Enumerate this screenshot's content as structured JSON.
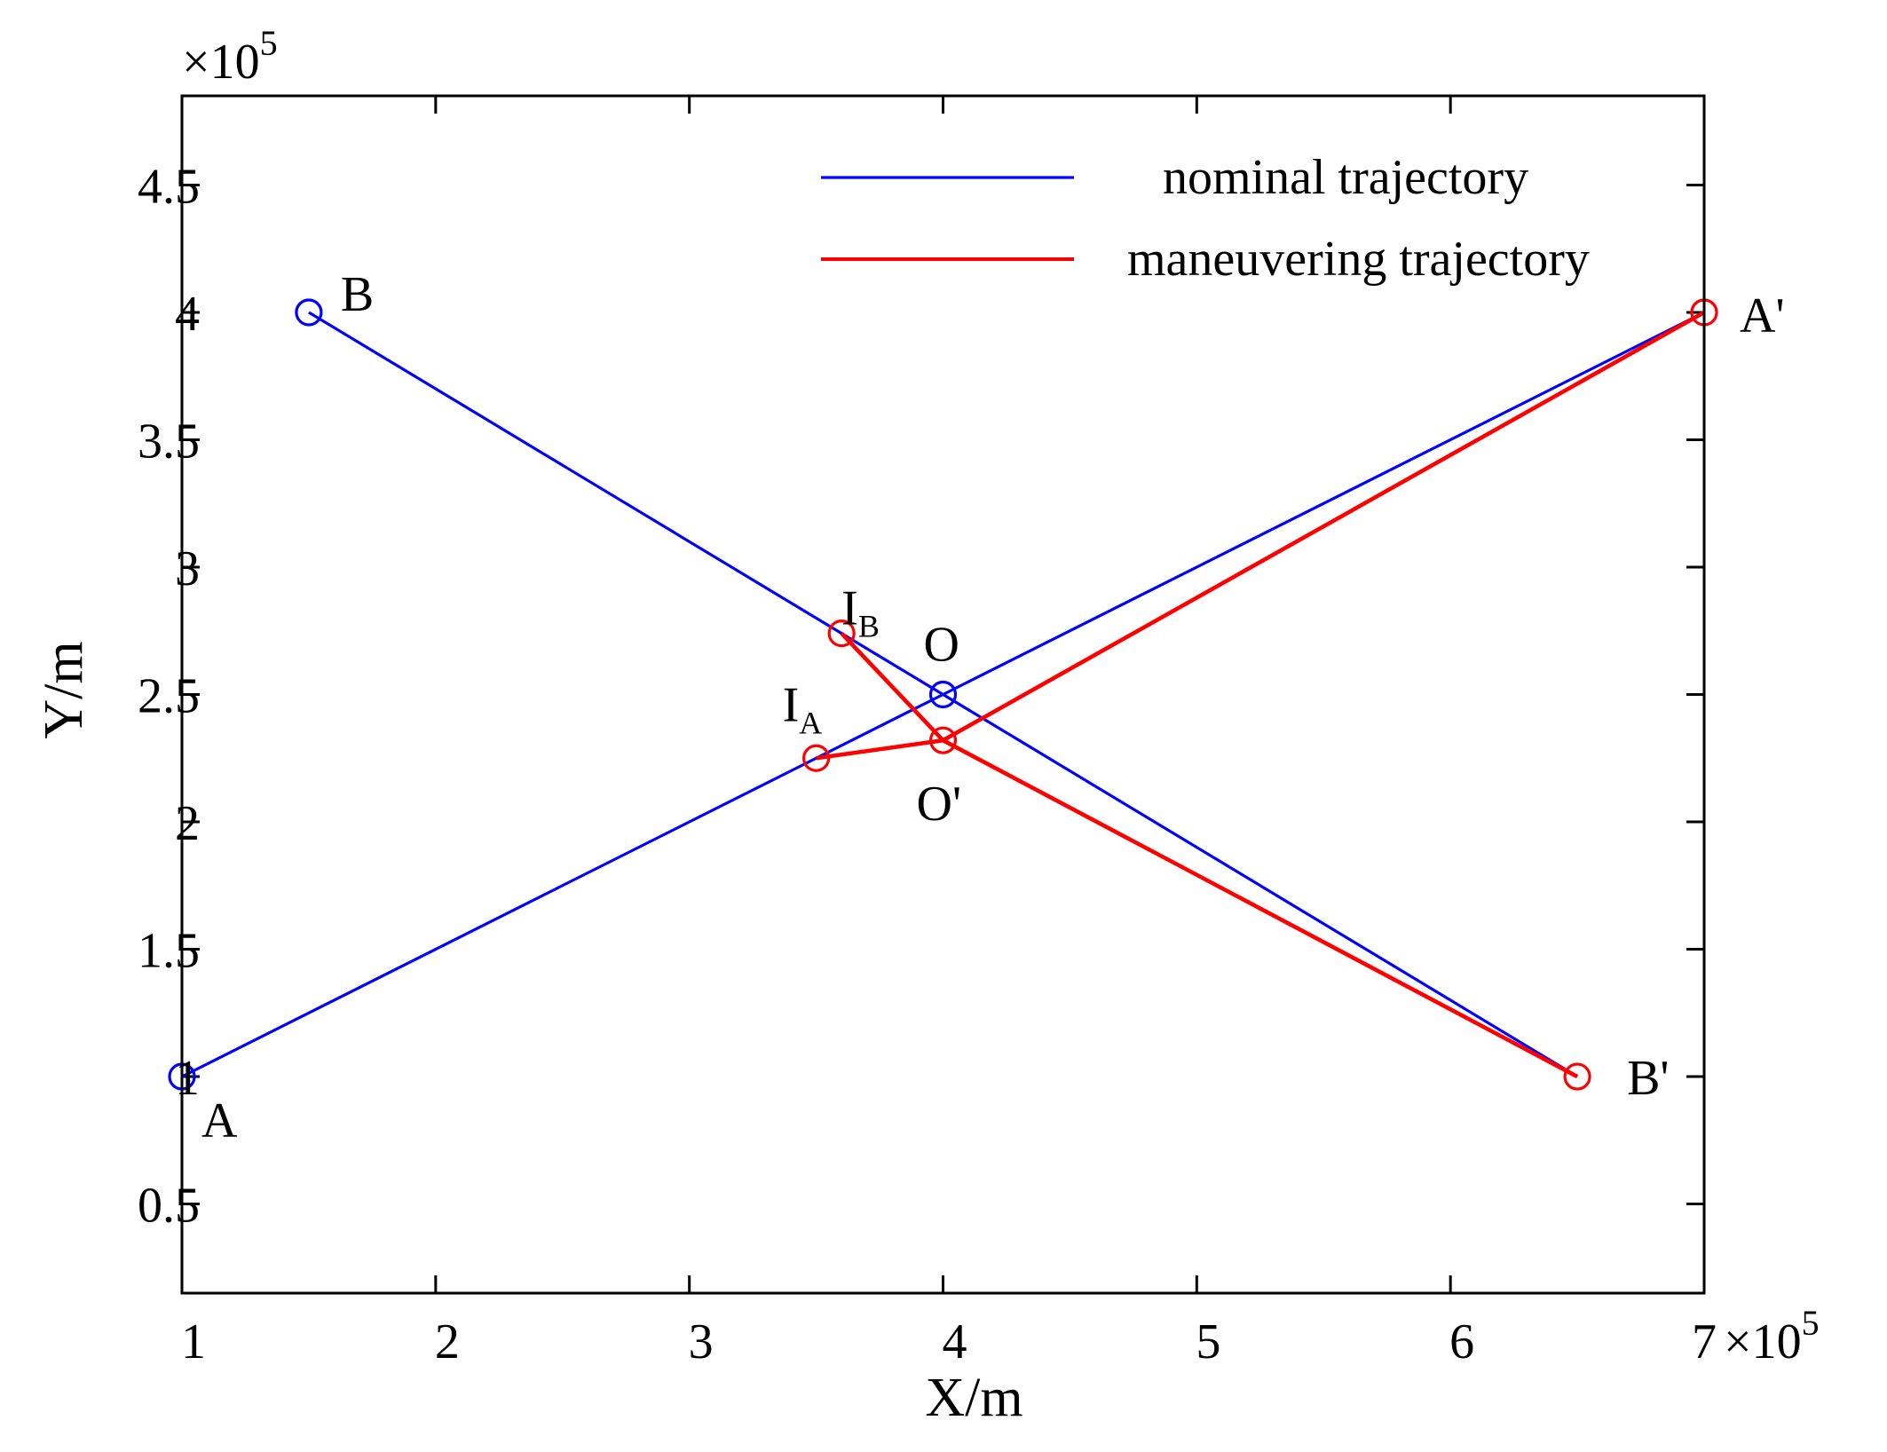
{
  "chart_data": {
    "type": "line",
    "xlabel": "X/m",
    "ylabel": "Y/m",
    "x_exponent": "×10",
    "x_exponent_power": "5",
    "y_exponent": "×10",
    "y_exponent_power": "5",
    "xlim": [
      1,
      7
    ],
    "ylim": [
      0.15,
      4.85
    ],
    "xticks": [
      1,
      2,
      3,
      4,
      5,
      6,
      7
    ],
    "xtick_labels": [
      "1",
      "2",
      "3",
      "4",
      "5",
      "6",
      "7"
    ],
    "yticks": [
      0.5,
      1,
      1.5,
      2,
      2.5,
      3,
      3.5,
      4,
      4.5
    ],
    "ytick_labels": [
      "0.5",
      "1",
      "1.5",
      "2",
      "2.5",
      "3",
      "3.5",
      "4",
      "4.5"
    ],
    "grid": false,
    "legend_position": "top-right",
    "series": [
      {
        "name": "nominal  trajectory",
        "color": "#0000ff",
        "lines": [
          {
            "x": [
              1,
              4,
              7
            ],
            "y": [
              1,
              2.5,
              4
            ]
          },
          {
            "x": [
              1.5,
              4,
              6.5
            ],
            "y": [
              4,
              2.5,
              1
            ]
          }
        ],
        "markers": [
          {
            "x": 1,
            "y": 1
          },
          {
            "x": 1.5,
            "y": 4
          },
          {
            "x": 4,
            "y": 2.5
          }
        ]
      },
      {
        "name": "maneuvering trajectory",
        "color": "#ff0000",
        "lines": [
          {
            "x": [
              3.5,
              4,
              7
            ],
            "y": [
              2.25,
              2.32,
              4
            ]
          },
          {
            "x": [
              3.6,
              4,
              6.5
            ],
            "y": [
              2.74,
              2.32,
              1
            ]
          }
        ],
        "markers": [
          {
            "x": 3.5,
            "y": 2.25
          },
          {
            "x": 3.6,
            "y": 2.74
          },
          {
            "x": 4,
            "y": 2.32
          },
          {
            "x": 7,
            "y": 4
          },
          {
            "x": 6.5,
            "y": 1
          }
        ]
      }
    ],
    "annotations": [
      {
        "id": "A",
        "text": "A",
        "sub": "",
        "x": 1,
        "y": 1
      },
      {
        "id": "B",
        "text": "B",
        "sub": "",
        "x": 1.5,
        "y": 4
      },
      {
        "id": "O",
        "text": "O",
        "sub": "",
        "x": 4,
        "y": 2.5
      },
      {
        "id": "Oprime",
        "text": "O'",
        "sub": "",
        "x": 4,
        "y": 2.32
      },
      {
        "id": "IA",
        "text": "I",
        "sub": "A",
        "x": 3.5,
        "y": 2.25
      },
      {
        "id": "IB",
        "text": "I",
        "sub": "B",
        "x": 3.6,
        "y": 2.74
      },
      {
        "id": "Aprime",
        "text": "A'",
        "sub": "",
        "x": 7,
        "y": 4
      },
      {
        "id": "Bprime",
        "text": "B'",
        "sub": "",
        "x": 6.5,
        "y": 1
      }
    ]
  }
}
